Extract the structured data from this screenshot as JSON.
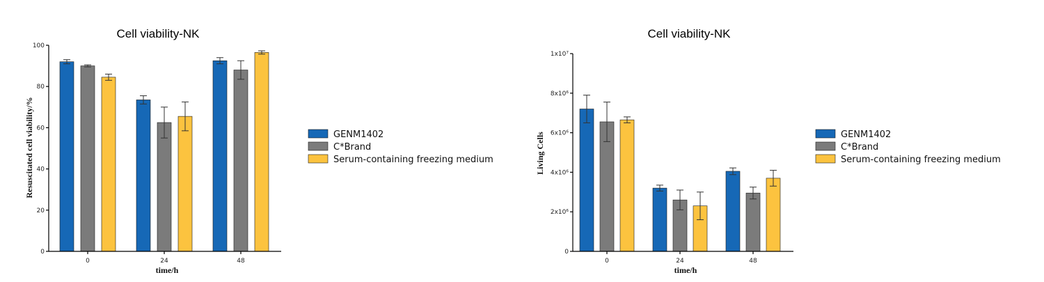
{
  "colors": {
    "GENM1402": "#1668b6",
    "C*Brand": "#7b7b7b",
    "Serum-containing freezing medium": "#fcc33f"
  },
  "chart_data": [
    {
      "type": "bar",
      "title": "Cell viability-NK",
      "xlabel": "time/h",
      "ylabel": "Resuscitated cell viability/%",
      "categories": [
        "0",
        "24",
        "48"
      ],
      "ylim": [
        0,
        100
      ],
      "yticks": [
        "0",
        "20",
        "40",
        "60",
        "80",
        "100"
      ],
      "series": [
        {
          "name": "GENM1402",
          "values": [
            92,
            73.5,
            92.5
          ],
          "errors": [
            1,
            2,
            1.5
          ]
        },
        {
          "name": "C*Brand",
          "values": [
            90,
            62.5,
            88
          ],
          "errors": [
            0.5,
            7.5,
            4.5
          ]
        },
        {
          "name": "Serum-containing freezing medium",
          "values": [
            84.5,
            65.5,
            96.5
          ],
          "errors": [
            1.5,
            7,
            0.8
          ]
        }
      ],
      "legend": "right"
    },
    {
      "type": "bar",
      "title": "Cell viability-NK",
      "xlabel": "time/h",
      "ylabel": "Living Cells",
      "categories": [
        "0",
        "24",
        "48"
      ],
      "ylim": [
        0,
        10000000
      ],
      "yticks": [
        "0",
        "2x10⁶",
        "4x10⁶",
        "6x10⁶",
        "8x10⁶",
        "1x10⁷"
      ],
      "series": [
        {
          "name": "GENM1402",
          "values": [
            7200000,
            3200000,
            4050000
          ],
          "errors": [
            700000,
            150000,
            170000
          ]
        },
        {
          "name": "C*Brand",
          "values": [
            6550000,
            2600000,
            2950000
          ],
          "errors": [
            1000000,
            500000,
            300000
          ]
        },
        {
          "name": "Serum-containing freezing medium",
          "values": [
            6650000,
            2300000,
            3700000
          ],
          "errors": [
            150000,
            700000,
            400000
          ]
        }
      ],
      "legend": "right"
    }
  ]
}
